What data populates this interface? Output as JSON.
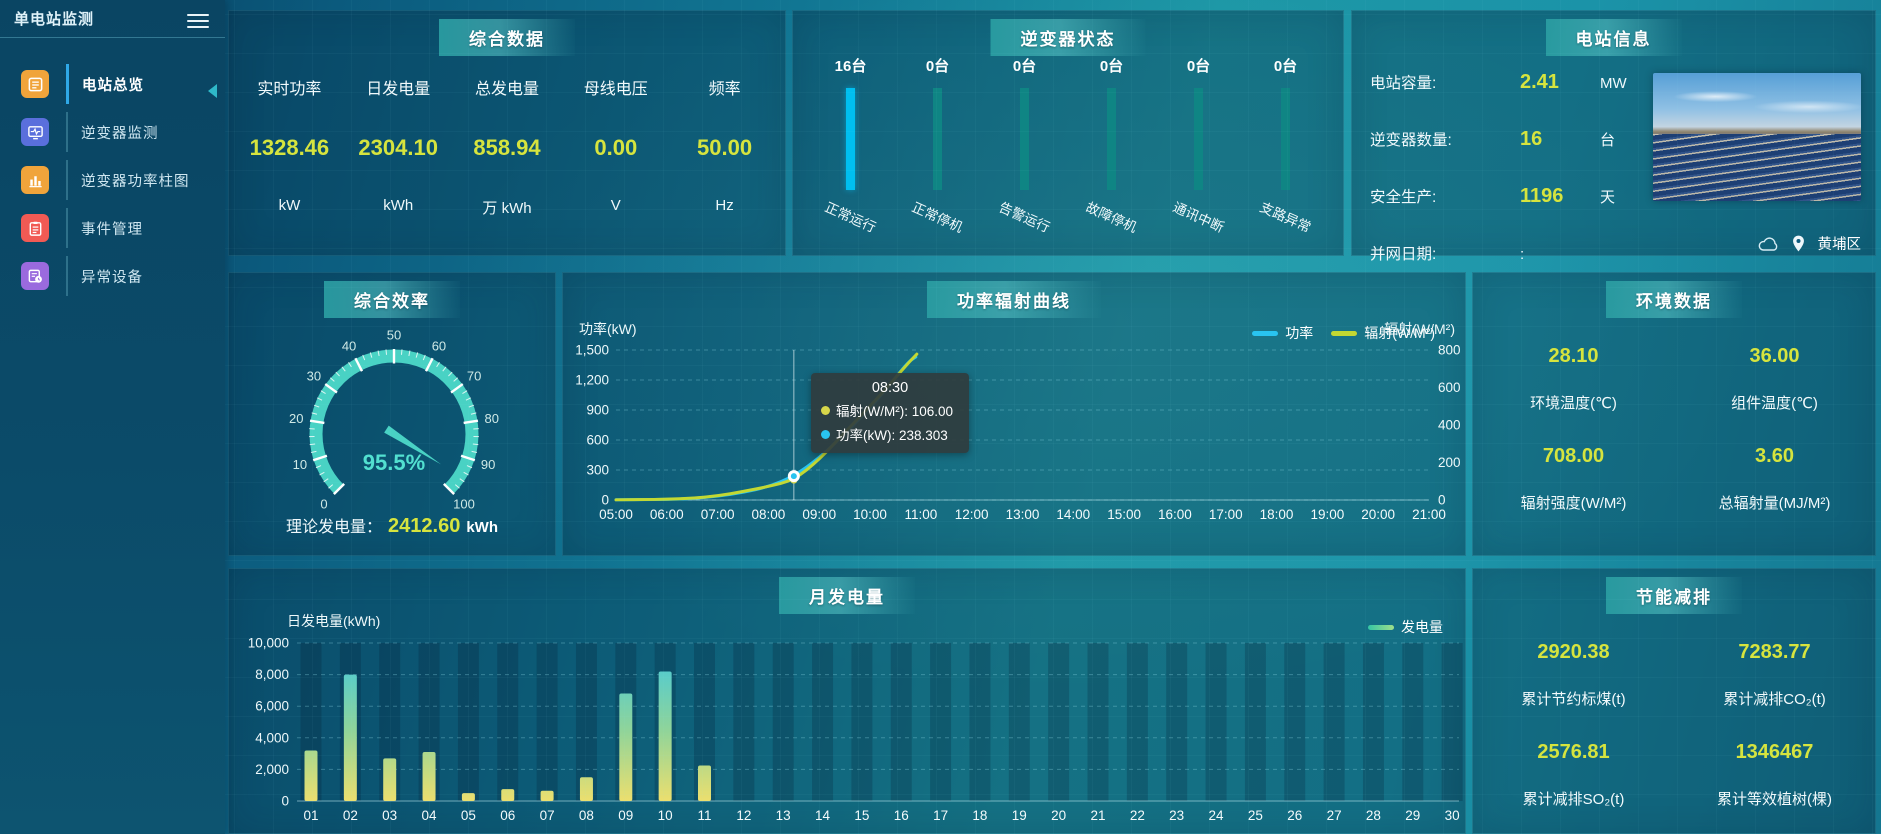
{
  "colors": {
    "accent_yellow": "#d6e43e",
    "cyan": "#29c4f0",
    "teal_dim": "#0f8584",
    "gauge": "#49d2c4",
    "lime": "#c3d832"
  },
  "sidebar": {
    "title": "单电站监测",
    "items": [
      {
        "label": "电站总览",
        "icon": "overview-doc-icon",
        "color": "#f0a43b",
        "active": true
      },
      {
        "label": "逆变器监测",
        "icon": "inverter-monitor-icon",
        "color": "#5a6fdc",
        "active": false
      },
      {
        "label": "逆变器功率柱图",
        "icon": "power-bars-icon",
        "color": "#f0a43b",
        "active": false
      },
      {
        "label": "事件管理",
        "icon": "event-clipboard-icon",
        "color": "#f15a54",
        "active": false
      },
      {
        "label": "异常设备",
        "icon": "abnormal-device-icon",
        "color": "#9a6ade",
        "active": false
      }
    ]
  },
  "overview": {
    "title": "综合数据",
    "metrics": [
      {
        "label": "实时功率",
        "value": "1328.46",
        "unit": "kW"
      },
      {
        "label": "日发电量",
        "value": "2304.10",
        "unit": "kWh"
      },
      {
        "label": "总发电量",
        "value": "858.94",
        "unit": "万 kWh"
      },
      {
        "label": "母线电压",
        "value": "0.00",
        "unit": "V"
      },
      {
        "label": "频率",
        "value": "50.00",
        "unit": "Hz"
      }
    ]
  },
  "inverter_status": {
    "title": "逆变器状态",
    "items": [
      {
        "count": "16台",
        "label": "正常运行",
        "highlight": true
      },
      {
        "count": "0台",
        "label": "正常停机",
        "highlight": false
      },
      {
        "count": "0台",
        "label": "告警运行",
        "highlight": false
      },
      {
        "count": "0台",
        "label": "故障停机",
        "highlight": false
      },
      {
        "count": "0台",
        "label": "通讯中断",
        "highlight": false
      },
      {
        "count": "0台",
        "label": "支路异常",
        "highlight": false
      }
    ]
  },
  "station_info": {
    "title": "电站信息",
    "rows": [
      {
        "label": "电站容量:",
        "value": "2.41",
        "unit": "MW",
        "muted": false
      },
      {
        "label": "逆变器数量:",
        "value": "16",
        "unit": "台",
        "muted": false
      },
      {
        "label": "安全生产:",
        "value": "1196",
        "unit": "天",
        "muted": false
      },
      {
        "label": "并网日期:",
        "value": ":",
        "unit": "",
        "muted": true
      }
    ],
    "location": "黄埔区"
  },
  "efficiency": {
    "title": "综合效率",
    "value_text": "95.5%",
    "theory_label": "理论发电量：",
    "theory_value": "2412.60",
    "theory_unit": "kWh"
  },
  "power_curve": {
    "title": "功率辐射曲线",
    "y_left": "功率(kW)",
    "y_right": "辐射(W/M²)",
    "legend": [
      {
        "label": "功率",
        "color": "#29c4f0"
      },
      {
        "label": "辐射(W/M²)",
        "color": "#c3d832"
      }
    ],
    "left_ticks": [
      "1,500",
      "1,200",
      "900",
      "600",
      "300",
      "0"
    ],
    "right_ticks": [
      "800",
      "600",
      "400",
      "200",
      "0"
    ],
    "tooltip": {
      "time": "08:30",
      "rows": [
        {
          "dot": "#d6d64a",
          "text": "辐射(W/M²): 106.00"
        },
        {
          "dot": "#29c4f0",
          "text": "功率(kW): 238.303"
        }
      ]
    }
  },
  "environment": {
    "title": "环境数据",
    "items": [
      {
        "value": "28.10",
        "label": "环境温度(℃)"
      },
      {
        "value": "36.00",
        "label": "组件温度(℃)"
      },
      {
        "value": "708.00",
        "label": "辐射强度(W/M²)"
      },
      {
        "value": "3.60",
        "label": "总辐射量(MJ/M²)"
      }
    ]
  },
  "monthly": {
    "title": "月发电量",
    "axis_label": "日发电量(kWh)",
    "legend": "发电量",
    "y_ticks": [
      "10,000",
      "8,000",
      "6,000",
      "4,000",
      "2,000",
      "0"
    ]
  },
  "energy_saving": {
    "title": "节能减排",
    "items": [
      {
        "value": "2920.38",
        "label": "累计节约标煤(t)"
      },
      {
        "value": "7283.77",
        "label": "累计减排CO₂(t)"
      },
      {
        "value": "2576.81",
        "label": "累计减排SO₂(t)"
      },
      {
        "value": "1346467",
        "label": "累计等效植树(棵)"
      }
    ]
  },
  "chart_data": [
    {
      "type": "bar",
      "title": "逆变器状态",
      "categories": [
        "正常运行",
        "正常停机",
        "告警运行",
        "故障停机",
        "通讯中断",
        "支路异常"
      ],
      "values": [
        16,
        0,
        0,
        0,
        0,
        0
      ],
      "unit": "台"
    },
    {
      "type": "line",
      "title": "功率辐射曲线",
      "x_ticks": [
        "05:00",
        "06:00",
        "07:00",
        "08:00",
        "09:00",
        "10:00",
        "11:00",
        "12:00",
        "13:00",
        "14:00",
        "15:00",
        "16:00",
        "17:00",
        "18:00",
        "19:00",
        "20:00",
        "21:00"
      ],
      "x_range_hours": [
        5,
        21
      ],
      "series": [
        {
          "name": "功率",
          "unit": "kW",
          "axis": "left",
          "ylim": [
            0,
            1500
          ],
          "color": "#29c4f0",
          "points": [
            [
              5,
              2
            ],
            [
              5.5,
              3
            ],
            [
              6,
              6
            ],
            [
              6.5,
              14
            ],
            [
              7,
              38
            ],
            [
              7.5,
              75
            ],
            [
              8,
              132
            ],
            [
              8.5,
              238.303
            ],
            [
              9,
              420
            ],
            [
              9.5,
              660
            ],
            [
              10,
              920
            ],
            [
              10.4,
              1160
            ],
            [
              10.75,
              1380
            ],
            [
              10.9,
              1430
            ]
          ]
        },
        {
          "name": "辐射(W/M²)",
          "unit": "W/M²",
          "axis": "right",
          "ylim": [
            0,
            800
          ],
          "color": "#c3d832",
          "points": [
            [
              5,
              1
            ],
            [
              5.5,
              2
            ],
            [
              6,
              4
            ],
            [
              6.5,
              9
            ],
            [
              7,
              22
            ],
            [
              7.5,
              45
            ],
            [
              8,
              72
            ],
            [
              8.5,
              106
            ],
            [
              9,
              215
            ],
            [
              9.5,
              360
            ],
            [
              10,
              500
            ],
            [
              10.4,
              620
            ],
            [
              10.75,
              730
            ],
            [
              10.92,
              778
            ]
          ]
        }
      ],
      "highlight": {
        "x": 8.5,
        "time": "08:30",
        "radiation": 106.0,
        "power": 238.303
      },
      "legend_position": "top-right"
    },
    {
      "type": "gauge",
      "title": "综合效率",
      "value": 95.5,
      "min": 0,
      "max": 100,
      "tick_step": 10,
      "unit": "%"
    },
    {
      "type": "bar",
      "title": "月发电量",
      "ylabel": "日发电量(kWh)",
      "ylim": [
        0,
        10000
      ],
      "categories": [
        "01",
        "02",
        "03",
        "04",
        "05",
        "06",
        "07",
        "08",
        "09",
        "10",
        "11",
        "12",
        "13",
        "14",
        "15",
        "16",
        "17",
        "18",
        "19",
        "20",
        "21",
        "22",
        "23",
        "24",
        "25",
        "26",
        "27",
        "28",
        "29",
        "30"
      ],
      "values": [
        3200,
        8000,
        2700,
        3100,
        500,
        750,
        650,
        1500,
        6800,
        8200,
        2250,
        0,
        0,
        0,
        0,
        0,
        0,
        0,
        0,
        0,
        0,
        0,
        0,
        0,
        0,
        0,
        0,
        0,
        0,
        0
      ]
    }
  ]
}
